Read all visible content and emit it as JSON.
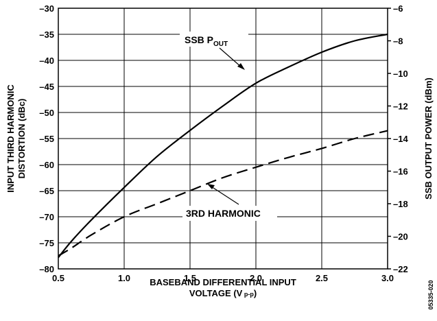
{
  "chart_data": {
    "type": "line",
    "xlabel_line1": "BASEBAND DIFFERENTIAL INPUT",
    "xlabel_line2_main": "VOLTAGE (V",
    "xlabel_line2_sub": " p-p",
    "xlabel_line2_end": ")",
    "ylabel_left_line1": "INPUT THIRD HARMONIC",
    "ylabel_left_line2": "DISTORTION (dBc)",
    "ylabel_right": "SSB OUTPUT POWER (dBm)",
    "xlim": [
      0.5,
      3.0
    ],
    "ylim_left": [
      -80,
      -30
    ],
    "ylim_right": [
      -22,
      -6
    ],
    "x_ticks": [
      0.5,
      1.0,
      1.5,
      2.0,
      2.5,
      3.0
    ],
    "x_tick_labels": [
      "0.5",
      "1.0",
      "1.5",
      "2.0",
      "2.5",
      "3.0"
    ],
    "left_ticks": [
      -30,
      -35,
      -40,
      -45,
      -50,
      -55,
      -60,
      -65,
      -70,
      -75,
      -80
    ],
    "left_tick_labels": [
      "–30",
      "–35",
      "–40",
      "–45",
      "–50",
      "–55",
      "–60",
      "–65",
      "–70",
      "–75",
      "–80"
    ],
    "right_ticks": [
      -6,
      -8,
      -10,
      -12,
      -14,
      -16,
      -18,
      -20,
      -22
    ],
    "right_tick_labels": [
      "–6",
      "–8",
      "–10",
      "–12",
      "–14",
      "–16",
      "–18",
      "–20",
      "–22"
    ],
    "grid": true,
    "series": [
      {
        "name": "SSB P_OUT",
        "label_main": "SSB P",
        "label_sub": "OUT",
        "axis": "right",
        "style": "solid",
        "x": [
          0.5,
          0.6,
          0.75,
          1.0,
          1.25,
          1.5,
          1.75,
          2.0,
          2.25,
          2.5,
          2.75,
          3.0
        ],
        "y": [
          -21.3,
          -20.3,
          -19.0,
          -17.0,
          -15.1,
          -13.5,
          -12.0,
          -10.6,
          -9.6,
          -8.7,
          -8.0,
          -7.6
        ]
      },
      {
        "name": "3RD HARMONIC",
        "label_main": "3RD HARMONIC",
        "axis": "left",
        "style": "dashed",
        "x": [
          0.5,
          0.6,
          0.75,
          1.0,
          1.25,
          1.5,
          1.75,
          2.0,
          2.25,
          2.5,
          2.75,
          3.0
        ],
        "y": [
          -77.5,
          -76.0,
          -73.5,
          -70.0,
          -67.5,
          -65.0,
          -62.5,
          -60.5,
          -58.6,
          -56.9,
          -55.0,
          -53.5
        ]
      }
    ]
  },
  "figure_id": "05335-020"
}
